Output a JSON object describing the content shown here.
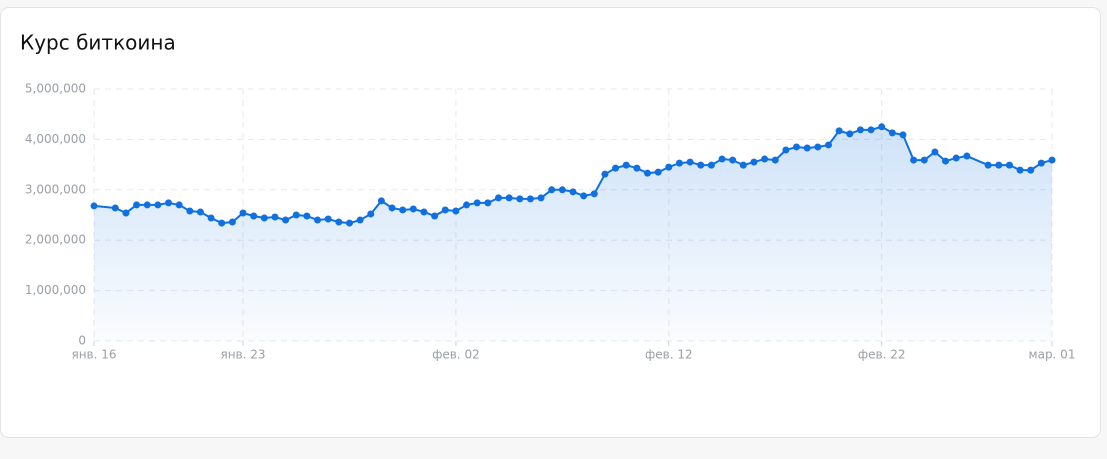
{
  "chart_data": {
    "type": "line",
    "title": "Курс биткоина",
    "x": [
      0,
      1,
      1.5,
      2,
      2.5,
      3,
      3.5,
      4,
      4.5,
      5,
      5.5,
      6,
      6.5,
      7,
      7.5,
      8,
      8.5,
      9,
      9.5,
      10,
      10.5,
      11,
      11.5,
      12,
      12.5,
      13,
      13.5,
      14,
      14.5,
      15,
      15.5,
      16,
      16.5,
      17,
      17.5,
      18,
      18.5,
      19,
      19.5,
      20,
      20.5,
      21,
      21.5,
      22,
      22.5,
      23,
      23.5,
      24,
      24.5,
      25,
      25.5,
      26,
      26.5,
      27,
      27.5,
      28,
      28.5,
      29,
      29.5,
      30,
      30.5,
      31,
      31.5,
      32,
      32.5,
      33,
      33.5,
      34,
      34.5,
      35,
      35.5,
      36,
      36.5,
      37,
      37.5,
      38,
      38.5,
      39,
      39.5,
      40,
      40.5,
      41,
      42,
      42.5,
      43,
      43.5,
      44,
      44.5,
      45
    ],
    "series": [
      {
        "color": "#1070e0",
        "values": [
          2680000,
          2640000,
          2540000,
          2700000,
          2700000,
          2700000,
          2740000,
          2700000,
          2580000,
          2560000,
          2440000,
          2340000,
          2360000,
          2540000,
          2480000,
          2440000,
          2460000,
          2400000,
          2500000,
          2480000,
          2400000,
          2420000,
          2360000,
          2340000,
          2400000,
          2520000,
          2780000,
          2640000,
          2600000,
          2620000,
          2560000,
          2480000,
          2600000,
          2580000,
          2700000,
          2740000,
          2740000,
          2840000,
          2840000,
          2820000,
          2820000,
          2840000,
          3000000,
          3000000,
          2960000,
          2880000,
          2920000,
          3310000,
          3430000,
          3490000,
          3430000,
          3330000,
          3350000,
          3450000,
          3530000,
          3550000,
          3490000,
          3490000,
          3610000,
          3590000,
          3490000,
          3550000,
          3610000,
          3590000,
          3790000,
          3850000,
          3830000,
          3850000,
          3890000,
          4170000,
          4110000,
          4190000,
          4190000,
          4250000,
          4130000,
          4090000,
          3590000,
          3590000,
          3750000,
          3570000,
          3630000,
          3670000,
          3490000,
          3490000,
          3490000,
          3390000,
          3390000,
          3530000,
          3590000
        ]
      }
    ],
    "xlim": [
      0,
      45
    ],
    "xticks": [
      {
        "value": 0,
        "label": "янв. 16"
      },
      {
        "value": 7,
        "label": "янв. 23"
      },
      {
        "value": 17,
        "label": "фев. 02"
      },
      {
        "value": 27,
        "label": "фев. 12"
      },
      {
        "value": 37,
        "label": "фев. 22"
      },
      {
        "value": 45,
        "label": "мар. 01"
      }
    ],
    "ylim": [
      0,
      5000000
    ],
    "yticks": [
      0,
      {
        "value": 1000000,
        "label": "1,000,000"
      },
      {
        "value": 2000000,
        "label": "2,000,000"
      },
      {
        "value": 3000000,
        "label": "3,000,000"
      },
      {
        "value": 4000000,
        "label": "4,000,000"
      },
      {
        "value": 5000000,
        "label": "5,000,000"
      }
    ],
    "grid": true
  }
}
